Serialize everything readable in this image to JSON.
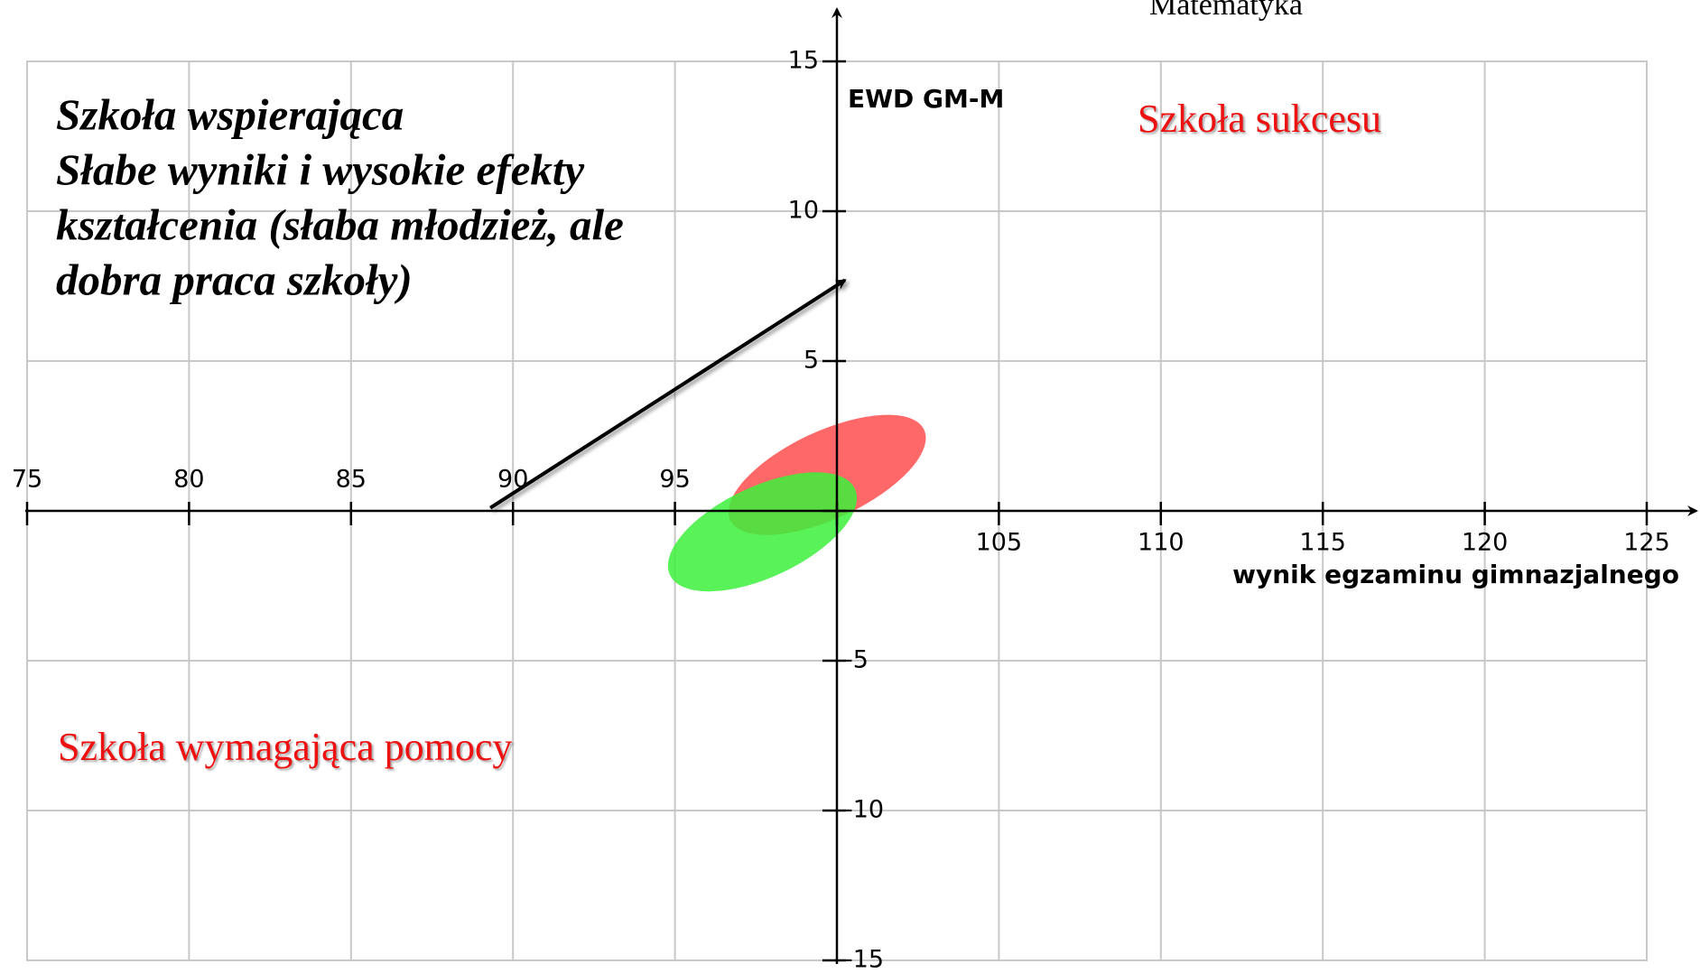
{
  "chart_data": {
    "type": "ellipse",
    "title": "Matematyka",
    "x_label": "wynik egzaminu gimnazjalnego",
    "y_label": "EWD GM-M",
    "xlim": [
      75,
      125
    ],
    "ylim": [
      -15,
      15
    ],
    "xticks": [
      75,
      80,
      85,
      90,
      95,
      {
        "value": 100,
        "label": null
      },
      105,
      110,
      115,
      120,
      125
    ],
    "yticks": [
      -15,
      -10,
      -5,
      {
        "value": 0,
        "label": null
      },
      5,
      10,
      15
    ],
    "axis_cross": [
      100,
      0
    ],
    "grid": true,
    "series": [
      {
        "color": "#ff4d4d",
        "x": 99.7,
        "y": 1.2,
        "width": 6.6,
        "height": 2.7,
        "angle": -25
      },
      {
        "color": "#3cf03c",
        "x": 97.7,
        "y": -0.7,
        "width": 6.3,
        "height": 2.8,
        "angle": -25
      }
    ],
    "arrow": {
      "x": [
        89.3,
        100.25
      ],
      "y": [
        0.1,
        7.7
      ]
    },
    "annotations": [
      {
        "lines": [
          "Szkoła wspierająca",
          "Słabe wyniki i wysokie efekty",
          "kształcenia (słaba młodzież, ale",
          "dobra praca szkoły)"
        ]
      },
      {
        "lines": [
          "Szkoła sukcesu"
        ]
      },
      {
        "lines": [
          "Szkoła wymagająca pomocy"
        ]
      }
    ]
  }
}
